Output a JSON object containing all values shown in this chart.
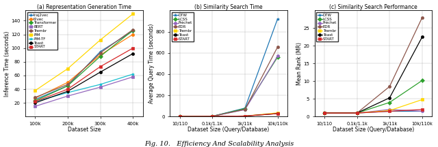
{
  "fig_title": "Fig. 10.   Efficiency And Scalability Analysis",
  "subplot_a": {
    "title": "(a) Representation Generation Time",
    "xlabel": "Dataset Size",
    "ylabel": "Inference Time (seconds)",
    "xticks": [
      "100k",
      "200k",
      "300k",
      "400k"
    ],
    "xvals": [
      1,
      2,
      3,
      4
    ],
    "ylim": [
      0,
      155
    ],
    "yticks": [
      20,
      40,
      60,
      80,
      100,
      120,
      140
    ],
    "series": [
      {
        "label": "traj2vec",
        "color": "#1f77b4",
        "marker": "*",
        "values": [
          25,
          45,
          95,
          125
        ]
      },
      {
        "label": "t2vec",
        "color": "#ff7f0e",
        "marker": "o",
        "values": [
          27,
          50,
          90,
          120
        ]
      },
      {
        "label": "Transformer",
        "color": "#2ca02c",
        "marker": "D",
        "values": [
          23,
          45,
          88,
          126
        ]
      },
      {
        "label": "BERT",
        "color": "#9467bd",
        "marker": "s",
        "values": [
          15,
          30,
          43,
          58
        ]
      },
      {
        "label": "Trembr",
        "color": "#8c564b",
        "marker": "o",
        "values": [
          28,
          47,
          93,
          127
        ]
      },
      {
        "label": "PIM",
        "color": "#FFD700",
        "marker": "s",
        "values": [
          38,
          70,
          112,
          150
        ]
      },
      {
        "label": "PIM-TF",
        "color": "#17becf",
        "marker": "*",
        "values": [
          22,
          35,
          47,
          62
        ]
      },
      {
        "label": "Toast",
        "color": "#000000",
        "marker": "o",
        "values": [
          20,
          37,
          65,
          92
        ]
      },
      {
        "label": "START",
        "color": "#d62728",
        "marker": "s",
        "values": [
          22,
          40,
          73,
          100
        ]
      }
    ]
  },
  "subplot_b": {
    "title": "(b) Similarity Search Time",
    "xlabel": "Dataset Size (Query/Database)",
    "ylabel": "Average Query Time (seconds)",
    "xticks": [
      "10/110",
      "0.1k/1.1k",
      "1k/11k",
      "10k/110k"
    ],
    "xvals": [
      0,
      1,
      2,
      3
    ],
    "ylim": [
      0,
      1000
    ],
    "yticks": [
      0,
      200,
      400,
      600,
      800
    ],
    "series": [
      {
        "label": "DTW",
        "color": "#1f77b4",
        "marker": "*",
        "values": [
          1,
          3,
          80,
          920
        ]
      },
      {
        "label": "LCSS",
        "color": "#2ca02c",
        "marker": "D",
        "values": [
          1,
          3,
          75,
          560
        ]
      },
      {
        "label": "Fréchet",
        "color": "#9467bd",
        "marker": "o",
        "values": [
          1,
          3,
          65,
          570
        ]
      },
      {
        "label": "EDR",
        "color": "#8c564b",
        "marker": "o",
        "values": [
          1,
          3,
          68,
          655
        ]
      },
      {
        "label": "Trembr",
        "color": "#FFD700",
        "marker": "s",
        "values": [
          1,
          2,
          5,
          35
        ]
      },
      {
        "label": "Toast",
        "color": "#000000",
        "marker": "o",
        "values": [
          1,
          2,
          5,
          28
        ]
      },
      {
        "label": "START",
        "color": "#d62728",
        "marker": "s",
        "values": [
          1,
          2,
          5,
          28
        ]
      }
    ]
  },
  "subplot_c": {
    "title": "(c) Similarity Search Performance",
    "xlabel": "Dataset Size (Query/Database)",
    "ylabel": "Mean Rank (MR)",
    "xticks": [
      "10/110",
      "0.1k/1.1k",
      "1k/11k",
      "10k/110k"
    ],
    "xvals": [
      0,
      1,
      2,
      3
    ],
    "ylim": [
      0,
      30
    ],
    "yticks": [
      0,
      5,
      10,
      15,
      20,
      25
    ],
    "series": [
      {
        "label": "DTW",
        "color": "#1f77b4",
        "marker": "*",
        "values": [
          1,
          1,
          1.5,
          1.5
        ]
      },
      {
        "label": "LCSS",
        "color": "#2ca02c",
        "marker": "D",
        "values": [
          1,
          1,
          4.0,
          10.2
        ]
      },
      {
        "label": "Fréchet",
        "color": "#9467bd",
        "marker": "o",
        "values": [
          1,
          1,
          2.0,
          1.5
        ]
      },
      {
        "label": "EDR",
        "color": "#8c564b",
        "marker": "o",
        "values": [
          1,
          1,
          8.5,
          28.0
        ]
      },
      {
        "label": "Trembr",
        "color": "#FFD700",
        "marker": "s",
        "values": [
          1,
          1,
          1.7,
          4.8
        ]
      },
      {
        "label": "Toast",
        "color": "#000000",
        "marker": "o",
        "values": [
          1,
          1,
          5.3,
          22.5
        ]
      },
      {
        "label": "START",
        "color": "#d62728",
        "marker": "s",
        "values": [
          1,
          1,
          1.5,
          2.0
        ]
      }
    ]
  }
}
